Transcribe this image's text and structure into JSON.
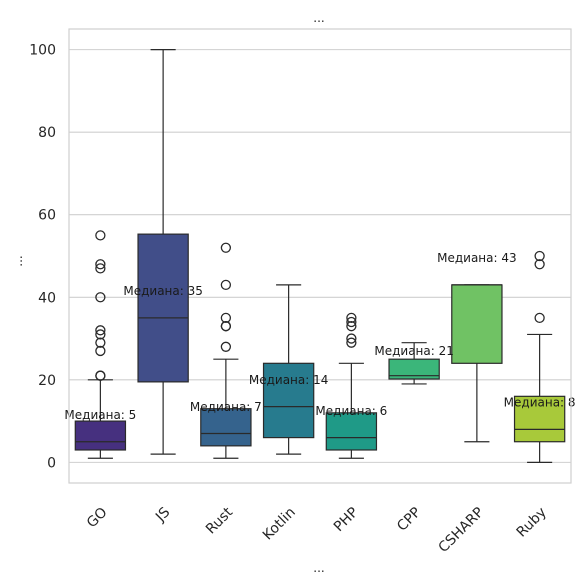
{
  "chart_data": {
    "type": "boxplot",
    "title": "...",
    "xlabel": "...",
    "ylabel": "...",
    "ylim": [
      -5,
      105
    ],
    "yticks": [
      0,
      20,
      40,
      60,
      80,
      100
    ],
    "grid": "horizontal",
    "categories": [
      "GO",
      "JS",
      "Rust",
      "Kotlin",
      "PHP",
      "CPP",
      "CSHARP",
      "Ruby"
    ],
    "colors": [
      "#46307f",
      "#414e89",
      "#35638d",
      "#277b8e",
      "#1f9a87",
      "#3bb67a",
      "#70c264",
      "#a8c93a"
    ],
    "boxes": [
      {
        "min": 1,
        "q1": 3,
        "median": 5,
        "q3": 10,
        "max": 20,
        "fliers": [
          21,
          21,
          27,
          29,
          31,
          32,
          40,
          47,
          48,
          55
        ]
      },
      {
        "min": 2,
        "q1": 19.5,
        "median": 35,
        "q3": 55.3,
        "max": 100,
        "fliers": []
      },
      {
        "min": 1,
        "q1": 4,
        "median": 7,
        "q3": 13,
        "max": 25,
        "fliers": [
          28,
          33,
          33,
          35,
          43,
          52
        ]
      },
      {
        "min": 2,
        "q1": 6,
        "median": 13.5,
        "q3": 24,
        "max": 43,
        "fliers": []
      },
      {
        "min": 1,
        "q1": 3,
        "median": 6,
        "q3": 12,
        "max": 24,
        "fliers": [
          29,
          30,
          33,
          34,
          35
        ]
      },
      {
        "min": 19,
        "q1": 20.2,
        "median": 21,
        "q3": 25,
        "max": 29,
        "fliers": []
      },
      {
        "min": 5,
        "q1": 24,
        "median": 43,
        "q3": 43,
        "max": 43,
        "fliers": []
      },
      {
        "min": 0,
        "q1": 5,
        "median": 8,
        "q3": 16,
        "max": 31,
        "fliers": [
          35,
          48,
          50
        ]
      }
    ],
    "median_labels": [
      "Медиана: 5",
      "Медиана: 35",
      "Медиана: 7",
      "Медиана: 14",
      "Медиана: 6",
      "Медиана: 21",
      "Медиана: 43",
      "Медиана: 8"
    ],
    "median_label_values": [
      10.5,
      40.5,
      12.5,
      19,
      11.5,
      26,
      48.5,
      13.5
    ]
  }
}
